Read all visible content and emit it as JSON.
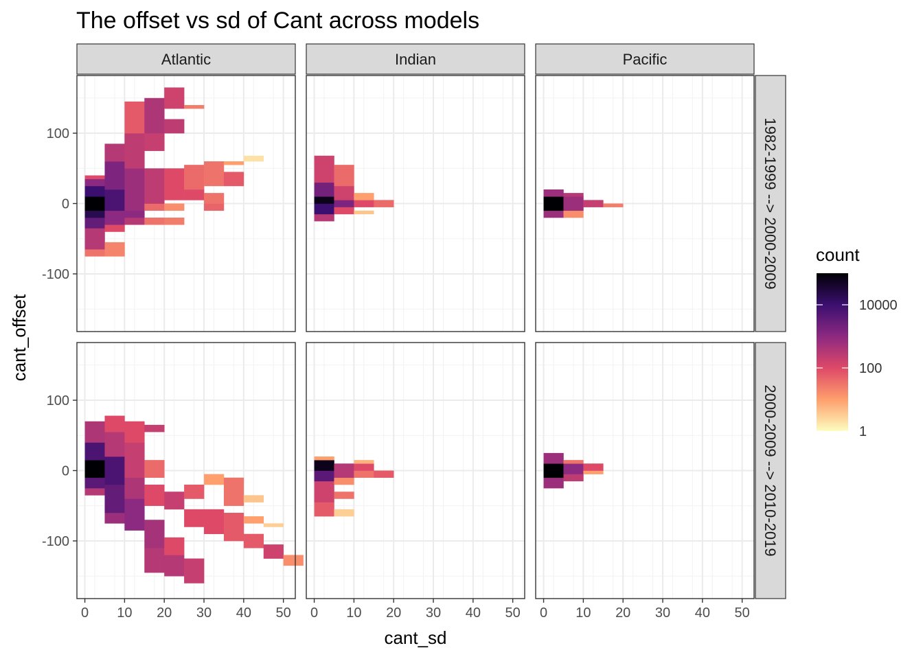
{
  "chart_data": {
    "type": "heatmap",
    "title": "The offset vs sd of Cant across models",
    "xlabel": "cant_sd",
    "ylabel": "cant_offset",
    "xlim": [
      -2,
      53
    ],
    "ylim": [
      -182,
      182
    ],
    "x_ticks": [
      0,
      10,
      20,
      30,
      40,
      50
    ],
    "y_ticks": [
      -100,
      0,
      100
    ],
    "bin_width_x": 5,
    "bin_height_y": 5,
    "columns": [
      "Atlantic",
      "Indian",
      "Pacific"
    ],
    "rows": [
      "1982-1999 --> 2000-2009",
      "2000-2009 --> 2010-2019"
    ],
    "legend": {
      "title": "count",
      "scale": "log10",
      "range": [
        1,
        100000
      ],
      "labels": [
        "10000",
        "100",
        "1"
      ],
      "label_values": [
        10000,
        100,
        1
      ],
      "palette": [
        "#fcfdbf",
        "#fe9f6d",
        "#de4968",
        "#8c2981",
        "#3b0f70",
        "#000004"
      ]
    },
    "cells": [
      {
        "facet": "Atlantic | 1982-1999 --> 2000-2009",
        "columns": [
          {
            "x": 0,
            "runs": [
              [
                -75,
                -65,
                1.5
              ],
              [
                -65,
                -35,
                2.5
              ],
              [
                -35,
                -20,
                3.5
              ],
              [
                -20,
                -10,
                4.3
              ],
              [
                -10,
                10,
                5.0
              ],
              [
                10,
                25,
                4.0
              ],
              [
                25,
                35,
                3.0
              ],
              [
                35,
                40,
                2.0
              ]
            ]
          },
          {
            "x": 5,
            "runs": [
              [
                -75,
                -55,
                1.3
              ],
              [
                -40,
                -30,
                2.0
              ],
              [
                -30,
                -10,
                3.0
              ],
              [
                -10,
                20,
                3.8
              ],
              [
                20,
                60,
                3.2
              ],
              [
                60,
                85,
                2.5
              ]
            ]
          },
          {
            "x": 10,
            "runs": [
              [
                -30,
                -20,
                2.5
              ],
              [
                -20,
                -10,
                3.0
              ],
              [
                -10,
                50,
                2.8
              ],
              [
                50,
                100,
                2.4
              ],
              [
                100,
                145,
                1.8
              ]
            ]
          },
          {
            "x": 15,
            "runs": [
              [
                -30,
                -20,
                1.5
              ],
              [
                -10,
                0,
                1.6
              ],
              [
                0,
                50,
                2.4
              ],
              [
                75,
                100,
                2.3
              ],
              [
                100,
                150,
                2.6
              ]
            ]
          },
          {
            "x": 20,
            "runs": [
              [
                -30,
                -20,
                1.4
              ],
              [
                -10,
                0,
                1.2
              ],
              [
                5,
                50,
                2.0
              ],
              [
                100,
                120,
                2.4
              ],
              [
                135,
                165,
                2.2
              ]
            ]
          },
          {
            "x": 25,
            "runs": [
              [
                5,
                20,
                2.0
              ],
              [
                20,
                55,
                1.6
              ],
              [
                135,
                140,
                1.4
              ]
            ]
          },
          {
            "x": 30,
            "runs": [
              [
                -10,
                0,
                1.7
              ],
              [
                0,
                15,
                1.5
              ],
              [
                25,
                60,
                1.5
              ]
            ]
          },
          {
            "x": 35,
            "runs": [
              [
                25,
                45,
                1.8
              ],
              [
                55,
                60,
                1.0
              ]
            ]
          },
          {
            "x": 40,
            "runs": [
              [
                60,
                68,
                0.3
              ]
            ]
          }
        ]
      },
      {
        "facet": "Indian | 1982-1999 --> 2000-2009",
        "columns": [
          {
            "x": 0,
            "runs": [
              [
                -25,
                -15,
                2.5
              ],
              [
                -15,
                0,
                4.0
              ],
              [
                0,
                10,
                4.8
              ],
              [
                10,
                30,
                3.3
              ],
              [
                30,
                68,
                2.2
              ]
            ]
          },
          {
            "x": 5,
            "runs": [
              [
                -15,
                -5,
                2.0
              ],
              [
                -5,
                5,
                3.2
              ],
              [
                5,
                25,
                2.2
              ],
              [
                25,
                55,
                1.6
              ]
            ]
          },
          {
            "x": 10,
            "runs": [
              [
                -15,
                -10,
                0.6
              ],
              [
                -5,
                5,
                2.0
              ],
              [
                5,
                15,
                1.0
              ]
            ]
          },
          {
            "x": 15,
            "runs": [
              [
                -5,
                5,
                1.6
              ]
            ]
          }
        ]
      },
      {
        "facet": "Pacific | 1982-1999 --> 2000-2009",
        "columns": [
          {
            "x": 0,
            "runs": [
              [
                -20,
                -10,
                2.8
              ],
              [
                -10,
                10,
                5.0
              ],
              [
                10,
                20,
                2.8
              ]
            ]
          },
          {
            "x": 5,
            "runs": [
              [
                -20,
                -10,
                1.2
              ],
              [
                -10,
                10,
                2.8
              ],
              [
                10,
                15,
                2.5
              ]
            ]
          },
          {
            "x": 10,
            "runs": [
              [
                -5,
                5,
                2.3
              ]
            ]
          },
          {
            "x": 15,
            "runs": [
              [
                -5,
                0,
                1.4
              ]
            ]
          }
        ]
      },
      {
        "facet": "Atlantic | 2000-2009 --> 2010-2019",
        "columns": [
          {
            "x": 0,
            "runs": [
              [
                -35,
                -25,
                2.5
              ],
              [
                -25,
                -10,
                3.6
              ],
              [
                -10,
                15,
                5.0
              ],
              [
                15,
                40,
                3.8
              ],
              [
                40,
                70,
                2.6
              ]
            ]
          },
          {
            "x": 5,
            "runs": [
              [
                -75,
                -60,
                2.8
              ],
              [
                -60,
                -20,
                3.5
              ],
              [
                -20,
                20,
                3.8
              ],
              [
                20,
                55,
                2.5
              ],
              [
                55,
                78,
                2.0
              ]
            ]
          },
          {
            "x": 10,
            "runs": [
              [
                -85,
                -40,
                3.0
              ],
              [
                -40,
                -10,
                2.6
              ],
              [
                -10,
                40,
                2.3
              ],
              [
                40,
                70,
                2.0
              ]
            ]
          },
          {
            "x": 15,
            "runs": [
              [
                -145,
                -110,
                2.5
              ],
              [
                -110,
                -70,
                2.7
              ],
              [
                -50,
                -20,
                2.0
              ],
              [
                -10,
                15,
                1.6
              ],
              [
                55,
                65,
                2.3
              ]
            ]
          },
          {
            "x": 20,
            "runs": [
              [
                -150,
                -120,
                2.5
              ],
              [
                -120,
                -95,
                2.0
              ],
              [
                -55,
                -30,
                2.3
              ]
            ]
          },
          {
            "x": 25,
            "runs": [
              [
                -160,
                -125,
                2.3
              ],
              [
                -80,
                -55,
                2.0
              ],
              [
                -40,
                -20,
                1.8
              ]
            ]
          },
          {
            "x": 30,
            "runs": [
              [
                -90,
                -55,
                2.0
              ],
              [
                -20,
                -5,
                1.0
              ]
            ]
          },
          {
            "x": 35,
            "runs": [
              [
                -100,
                -60,
                1.8
              ],
              [
                -50,
                -10,
                1.5
              ]
            ]
          },
          {
            "x": 40,
            "runs": [
              [
                -110,
                -90,
                1.8
              ],
              [
                -75,
                -65,
                1.0
              ],
              [
                -45,
                -35,
                0.6
              ]
            ]
          },
          {
            "x": 45,
            "runs": [
              [
                -125,
                -105,
                2.2
              ],
              [
                -80,
                -75,
                0.5
              ]
            ]
          },
          {
            "x": 50,
            "runs": [
              [
                -135,
                -120,
                1.2
              ]
            ]
          }
        ]
      },
      {
        "facet": "Indian | 2000-2009 --> 2010-2019",
        "columns": [
          {
            "x": 0,
            "runs": [
              [
                -65,
                -45,
                1.8
              ],
              [
                -45,
                -15,
                2.2
              ],
              [
                -15,
                0,
                3.6
              ],
              [
                0,
                15,
                4.8
              ],
              [
                15,
                20,
                1.0
              ]
            ]
          },
          {
            "x": 5,
            "runs": [
              [
                -65,
                -55,
                0.5
              ],
              [
                -40,
                -30,
                1.5
              ],
              [
                -20,
                -10,
                1.2
              ],
              [
                -10,
                10,
                2.5
              ]
            ]
          },
          {
            "x": 10,
            "runs": [
              [
                -10,
                0,
                1.5
              ],
              [
                0,
                10,
                2.0
              ],
              [
                10,
                15,
                0.8
              ]
            ]
          },
          {
            "x": 15,
            "runs": [
              [
                -10,
                0,
                1.8
              ]
            ]
          }
        ]
      },
      {
        "facet": "Pacific | 2000-2009 --> 2010-2019",
        "columns": [
          {
            "x": 0,
            "runs": [
              [
                -25,
                -10,
                2.8
              ],
              [
                -10,
                10,
                5.0
              ],
              [
                10,
                25,
                2.8
              ]
            ]
          },
          {
            "x": 5,
            "runs": [
              [
                -15,
                -5,
                2.4
              ],
              [
                -5,
                10,
                3.0
              ],
              [
                10,
                15,
                1.5
              ]
            ]
          },
          {
            "x": 10,
            "runs": [
              [
                -5,
                0,
                1.0
              ],
              [
                0,
                10,
                2.0
              ]
            ]
          }
        ]
      }
    ]
  }
}
